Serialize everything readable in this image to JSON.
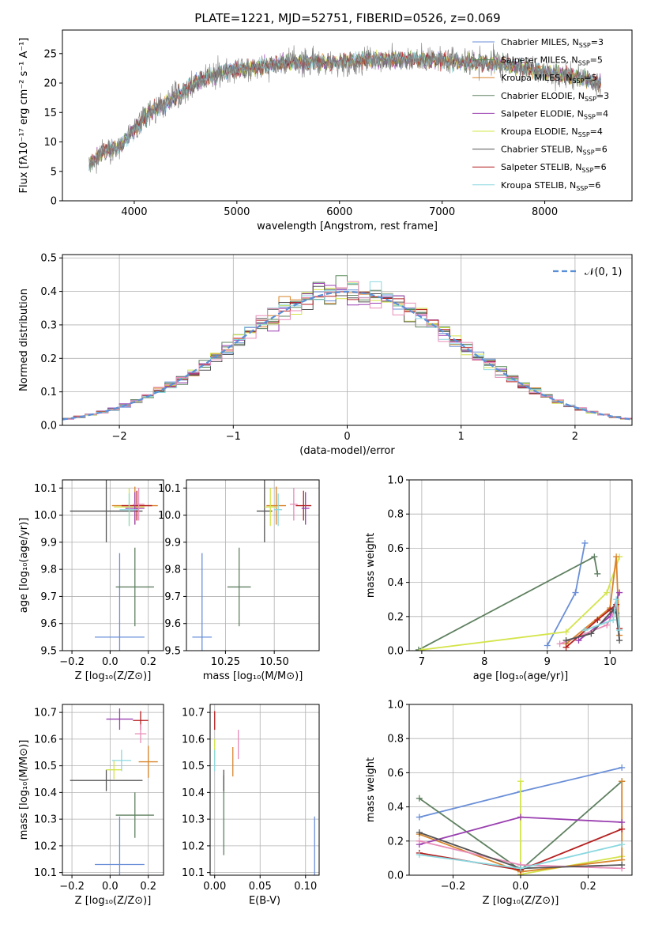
{
  "figure_title": "PLATE=1221, MJD=52751, FIBERID=0526, z=0.069",
  "colors": {
    "chabrier_miles": "#6a8fd8",
    "salpeter_miles": "#5a8a5a",
    "kroupa_miles": "#d8842a",
    "chabrier_elodie": "#5f8060",
    "salpeter_elodie": "#9a3fb0",
    "kroupa_elodie": "#d4e44a",
    "chabrier_stelib": "#555555",
    "salpeter_stelib": "#b52020",
    "kroupa_stelib": "#8ad8e0",
    "pink": "#e88cb8"
  },
  "chart_data": [
    {
      "id": "spectrum",
      "type": "line",
      "xlabel": "wavelength [Angstrom, rest frame]",
      "ylabel": "Flux [fλ10⁻¹⁷ erg cm⁻² s⁻¹ A⁻¹]",
      "xlim": [
        3300,
        8850
      ],
      "ylim": [
        0,
        29
      ],
      "xticks": [
        "4000",
        "5000",
        "6000",
        "7000",
        "8000"
      ],
      "yticks": [
        "0",
        "5",
        "10",
        "15",
        "20",
        "25"
      ],
      "legend_position": "upper-right",
      "legend": [
        {
          "label": "Chabrier MILES, N",
          "sub": "SSP",
          "value": "=3",
          "color": "#6a8fd8"
        },
        {
          "label": "Salpeter MILES, N",
          "sub": "SSP",
          "value": "=5",
          "color": "#5a8a5a"
        },
        {
          "label": "Kroupa MILES, N",
          "sub": "SSP",
          "value": "=5",
          "color": "#d8842a"
        },
        {
          "label": "Chabrier ELODIE, N",
          "sub": "SSP",
          "value": "=3",
          "color": "#5f8060"
        },
        {
          "label": "Salpeter ELODIE, N",
          "sub": "SSP",
          "value": "=4",
          "color": "#9a3fb0"
        },
        {
          "label": "Kroupa ELODIE, N",
          "sub": "SSP",
          "value": "=4",
          "color": "#d4e44a"
        },
        {
          "label": "Chabrier STELIB, N",
          "sub": "SSP",
          "value": "=6",
          "color": "#555555"
        },
        {
          "label": "Salpeter STELIB, N",
          "sub": "SSP",
          "value": "=6",
          "color": "#b52020"
        },
        {
          "label": "Kroupa STELIB, N",
          "sub": "SSP",
          "value": "=6",
          "color": "#8ad8e0"
        }
      ],
      "continuum": [
        [
          3560,
          6
        ],
        [
          3700,
          8.5
        ],
        [
          3850,
          9
        ],
        [
          3950,
          11
        ],
        [
          4050,
          13
        ],
        [
          4150,
          15
        ],
        [
          4250,
          16
        ],
        [
          4350,
          17
        ],
        [
          4500,
          19
        ],
        [
          4700,
          21
        ],
        [
          4900,
          22
        ],
        [
          5100,
          22.5
        ],
        [
          5300,
          23
        ],
        [
          5500,
          23.5
        ],
        [
          5700,
          23.5
        ],
        [
          6000,
          23.5
        ],
        [
          6300,
          24
        ],
        [
          6600,
          24
        ],
        [
          6900,
          24
        ],
        [
          7200,
          23.5
        ],
        [
          7500,
          23.5
        ],
        [
          7800,
          22.5
        ],
        [
          8100,
          21.5
        ],
        [
          8350,
          21
        ],
        [
          8550,
          20
        ]
      ]
    },
    {
      "id": "residuals",
      "type": "histogram",
      "xlabel": "(data-model)/error",
      "ylabel": "Normed distribution",
      "xlim": [
        -2.5,
        2.5
      ],
      "ylim": [
        0,
        0.51
      ],
      "xticks": [
        "−2",
        "−1",
        "0",
        "1",
        "2"
      ],
      "yticks": [
        "0.0",
        "0.1",
        "0.2",
        "0.3",
        "0.4",
        "0.5"
      ],
      "legend_position": "upper-right",
      "legend": [
        "𝒩(0, 1)"
      ],
      "bin_width": 0.1,
      "reference_curve": "normal(0,1)"
    },
    {
      "id": "age_vs_Z",
      "type": "scatter",
      "xlabel": "Z [log₁₀(Z/Z⊙)]",
      "ylabel": "age  [log₁₀(age/yr)]",
      "xlim": [
        -0.25,
        0.28
      ],
      "ylim": [
        9.5,
        10.13
      ],
      "xticks": [
        "−0.2",
        "0.0",
        "0.2"
      ],
      "yticks": [
        "9.5",
        "9.6",
        "9.7",
        "9.8",
        "9.9",
        "10.0",
        "10.1"
      ],
      "points": [
        {
          "x": 0.05,
          "y": 9.55,
          "xerr": 0.13,
          "yerr": 0.31,
          "color": "#6a8fd8"
        },
        {
          "x": 0.13,
          "y": 9.735,
          "xerr": 0.1,
          "yerr": 0.145,
          "color": "#5f8060"
        },
        {
          "x": -0.02,
          "y": 10.015,
          "xerr": 0.19,
          "yerr": 0.115,
          "color": "#555555"
        },
        {
          "x": 0.13,
          "y": 10.035,
          "xerr": 0.12,
          "yerr": 0.07,
          "color": "#d8842a"
        },
        {
          "x": 0.14,
          "y": 10.035,
          "xerr": 0.08,
          "yerr": 0.055,
          "color": "#b52020"
        },
        {
          "x": 0.1,
          "y": 10.03,
          "xerr": 0.08,
          "yerr": 0.07,
          "color": "#d4e44a"
        },
        {
          "x": 0.13,
          "y": 10.025,
          "xerr": 0.05,
          "yerr": 0.06,
          "color": "#9a3fb0"
        },
        {
          "x": 0.1,
          "y": 10.02,
          "xerr": 0.05,
          "yerr": 0.06,
          "color": "#8ad8e0"
        },
        {
          "x": 0.15,
          "y": 10.04,
          "xerr": 0.03,
          "yerr": 0.06,
          "color": "#e88cb8"
        }
      ]
    },
    {
      "id": "age_vs_mass",
      "type": "scatter",
      "xlabel": "mass [log₁₀(M/M⊙)]",
      "ylabel": "",
      "xlim": [
        10.05,
        10.73
      ],
      "ylim": [
        9.5,
        10.13
      ],
      "xticks": [
        "10.25",
        "10.50"
      ],
      "yticks": [
        "9.5",
        "9.6",
        "9.7",
        "9.8",
        "9.9",
        "10.0",
        "10.1"
      ],
      "points": [
        {
          "x": 10.13,
          "y": 9.55,
          "xerr": 0.05,
          "yerr": 0.31,
          "color": "#6a8fd8"
        },
        {
          "x": 10.32,
          "y": 9.735,
          "xerr": 0.06,
          "yerr": 0.145,
          "color": "#5f8060"
        },
        {
          "x": 10.45,
          "y": 10.015,
          "xerr": 0.04,
          "yerr": 0.115,
          "color": "#555555"
        },
        {
          "x": 10.51,
          "y": 10.035,
          "xerr": 0.05,
          "yerr": 0.07,
          "color": "#d8842a"
        },
        {
          "x": 10.65,
          "y": 10.035,
          "xerr": 0.04,
          "yerr": 0.055,
          "color": "#b52020"
        },
        {
          "x": 10.48,
          "y": 10.03,
          "xerr": 0.03,
          "yerr": 0.07,
          "color": "#d4e44a"
        },
        {
          "x": 10.66,
          "y": 10.025,
          "xerr": 0.02,
          "yerr": 0.06,
          "color": "#9a3fb0"
        },
        {
          "x": 10.52,
          "y": 10.02,
          "xerr": 0.02,
          "yerr": 0.06,
          "color": "#8ad8e0"
        },
        {
          "x": 10.6,
          "y": 10.04,
          "xerr": 0.02,
          "yerr": 0.06,
          "color": "#e88cb8"
        }
      ]
    },
    {
      "id": "weight_vs_age",
      "type": "line",
      "xlabel": "age  [log₁₀(age/yr)]",
      "ylabel": "mass weight",
      "xlim": [
        6.8,
        10.35
      ],
      "ylim": [
        0,
        1.0
      ],
      "xticks": [
        "7",
        "8",
        "9",
        "10"
      ],
      "yticks": [
        "0.0",
        "0.2",
        "0.4",
        "0.6",
        "0.8",
        "1.0"
      ],
      "series": [
        {
          "color": "#6a8fd8",
          "points": [
            [
              9.0,
              0.03
            ],
            [
              9.45,
              0.34
            ],
            [
              9.6,
              0.63
            ]
          ]
        },
        {
          "color": "#5f8060",
          "points": [
            [
              6.95,
              0.005
            ],
            [
              9.75,
              0.55
            ],
            [
              9.8,
              0.45
            ]
          ]
        },
        {
          "color": "#d4e44a",
          "points": [
            [
              7.0,
              0.005
            ],
            [
              9.3,
              0.11
            ],
            [
              9.95,
              0.34
            ],
            [
              10.15,
              0.55
            ]
          ]
        },
        {
          "color": "#d8842a",
          "points": [
            [
              9.3,
              0.04
            ],
            [
              10.0,
              0.25
            ],
            [
              10.1,
              0.55
            ],
            [
              10.15,
              0.09
            ]
          ]
        },
        {
          "color": "#9a3fb0",
          "points": [
            [
              9.5,
              0.06
            ],
            [
              10.0,
              0.2
            ],
            [
              10.15,
              0.34
            ]
          ]
        },
        {
          "color": "#e88cb8",
          "points": [
            [
              9.2,
              0.04
            ],
            [
              9.95,
              0.15
            ],
            [
              10.1,
              0.25
            ]
          ]
        },
        {
          "color": "#b52020",
          "points": [
            [
              9.3,
              0.02
            ],
            [
              9.8,
              0.18
            ],
            [
              10.0,
              0.24
            ],
            [
              10.1,
              0.27
            ],
            [
              10.15,
              0.13
            ]
          ]
        },
        {
          "color": "#555555",
          "points": [
            [
              9.3,
              0.06
            ],
            [
              9.7,
              0.1
            ],
            [
              10.05,
              0.24
            ],
            [
              10.1,
              0.22
            ],
            [
              10.15,
              0.06
            ]
          ]
        },
        {
          "color": "#8ad8e0",
          "points": [
            [
              9.6,
              0.12
            ],
            [
              10.05,
              0.18
            ],
            [
              10.1,
              0.3
            ],
            [
              10.15,
              0.12
            ]
          ]
        }
      ]
    },
    {
      "id": "mass_vs_Z",
      "type": "scatter",
      "xlabel": "Z [log₁₀(Z/Z⊙)]",
      "ylabel": "mass [log₁₀(M/M⊙)]",
      "xlim": [
        -0.25,
        0.28
      ],
      "ylim": [
        10.09,
        10.73
      ],
      "xticks": [
        "−0.2",
        "0.0",
        "0.2"
      ],
      "yticks": [
        "10.1",
        "10.2",
        "10.3",
        "10.4",
        "10.5",
        "10.6",
        "10.7"
      ],
      "points": [
        {
          "x": 0.05,
          "y": 10.13,
          "xerr": 0.13,
          "yerr": 0.18,
          "color": "#6a8fd8"
        },
        {
          "x": 0.13,
          "y": 10.315,
          "xerr": 0.1,
          "yerr": 0.085,
          "color": "#5f8060"
        },
        {
          "x": -0.02,
          "y": 10.445,
          "xerr": 0.19,
          "yerr": 0.04,
          "color": "#555555"
        },
        {
          "x": 0.2,
          "y": 10.515,
          "xerr": 0.05,
          "yerr": 0.06,
          "color": "#d8842a"
        },
        {
          "x": 0.16,
          "y": 10.67,
          "xerr": 0.04,
          "yerr": 0.035,
          "color": "#b52020"
        },
        {
          "x": 0.02,
          "y": 10.485,
          "xerr": 0.04,
          "yerr": 0.035,
          "color": "#d4e44a"
        },
        {
          "x": 0.05,
          "y": 10.675,
          "xerr": 0.07,
          "yerr": 0.04,
          "color": "#9a3fb0"
        },
        {
          "x": 0.06,
          "y": 10.52,
          "xerr": 0.05,
          "yerr": 0.04,
          "color": "#8ad8e0"
        },
        {
          "x": 0.16,
          "y": 10.62,
          "xerr": 0.03,
          "yerr": 0.035,
          "color": "#e88cb8"
        }
      ]
    },
    {
      "id": "mass_vs_ebv",
      "type": "scatter",
      "xlabel": "E(B-V)",
      "ylabel": "",
      "xlim": [
        -0.005,
        0.115
      ],
      "ylim": [
        10.09,
        10.73
      ],
      "xticks": [
        "0.00",
        "0.05",
        "0.10"
      ],
      "yticks": [
        "10.1",
        "10.2",
        "10.3",
        "10.4",
        "10.5",
        "10.6",
        "10.7"
      ],
      "points": [
        {
          "x": 0.11,
          "y": 10.13,
          "xerr": 0,
          "yerr": 0.18,
          "color": "#6a8fd8"
        },
        {
          "x": 0.01,
          "y": 10.315,
          "xerr": 0,
          "yerr": 0.15,
          "color": "#5f8060"
        },
        {
          "x": 0.01,
          "y": 10.445,
          "xerr": 0,
          "yerr": 0.04,
          "color": "#555555"
        },
        {
          "x": 0.02,
          "y": 10.515,
          "xerr": 0,
          "yerr": 0.055,
          "color": "#d8842a"
        },
        {
          "x": 0.0,
          "y": 10.67,
          "xerr": 0,
          "yerr": 0.035,
          "color": "#b52020"
        },
        {
          "x": 0.0,
          "y": 10.56,
          "xerr": 0,
          "yerr": 0.04,
          "color": "#d4e44a"
        },
        {
          "x": 0.0,
          "y": 10.52,
          "xerr": 0,
          "yerr": 0.04,
          "color": "#8ad8e0"
        },
        {
          "x": 0.026,
          "y": 10.58,
          "xerr": 0,
          "yerr": 0.055,
          "color": "#e88cb8"
        }
      ]
    },
    {
      "id": "weight_vs_Z",
      "type": "line",
      "xlabel": "Z [log₁₀(Z/Z⊙)]",
      "ylabel": "mass weight",
      "xlim": [
        -0.33,
        0.33
      ],
      "ylim": [
        0,
        1.0
      ],
      "xticks": [
        "−0.2",
        "0.0",
        "0.2"
      ],
      "yticks": [
        "0.0",
        "0.2",
        "0.4",
        "0.6",
        "0.8",
        "1.0"
      ],
      "series": [
        {
          "color": "#6a8fd8",
          "points": [
            [
              -0.3,
              0.34
            ],
            [
              0.0,
              0.49
            ],
            [
              0.3,
              0.63
            ]
          ]
        },
        {
          "color": "#5f8060",
          "points": [
            [
              -0.3,
              0.45
            ],
            [
              0.0,
              0.03
            ],
            [
              0.3,
              0.55
            ]
          ]
        },
        {
          "color": "#d4e44a",
          "points": [
            [
              0.0,
              0.55
            ],
            [
              0.0,
              0.005
            ],
            [
              0.3,
              0.11
            ]
          ]
        },
        {
          "color": "#d8842a",
          "points": [
            [
              -0.3,
              0.24
            ],
            [
              0.0,
              0.02
            ],
            [
              0.3,
              0.09
            ],
            [
              0.3,
              0.55
            ]
          ]
        },
        {
          "color": "#9a3fb0",
          "points": [
            [
              -0.3,
              0.18
            ],
            [
              0.0,
              0.34
            ],
            [
              0.3,
              0.31
            ]
          ]
        },
        {
          "color": "#e88cb8",
          "points": [
            [
              -0.3,
              0.2
            ],
            [
              0.0,
              0.06
            ],
            [
              0.3,
              0.04
            ]
          ]
        },
        {
          "color": "#b52020",
          "points": [
            [
              -0.3,
              0.13
            ],
            [
              0.0,
              0.03
            ],
            [
              0.3,
              0.27
            ]
          ]
        },
        {
          "color": "#555555",
          "points": [
            [
              -0.3,
              0.25
            ],
            [
              0.0,
              0.04
            ],
            [
              0.3,
              0.06
            ]
          ]
        },
        {
          "color": "#8ad8e0",
          "points": [
            [
              -0.3,
              0.12
            ],
            [
              0.0,
              0.04
            ],
            [
              0.3,
              0.18
            ]
          ]
        }
      ]
    }
  ]
}
